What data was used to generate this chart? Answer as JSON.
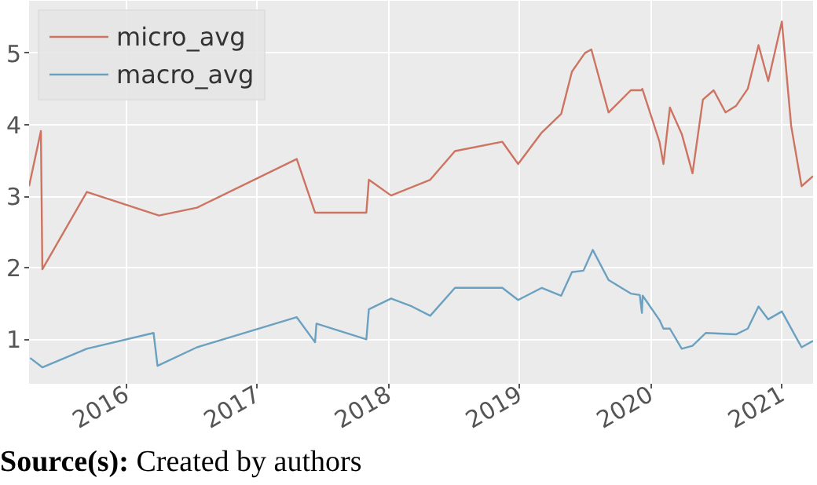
{
  "chart_data": {
    "type": "line",
    "xlim": [
      "2015-04-05",
      "2021-03-29"
    ],
    "xticks": [
      {
        "value": "2016-01-01",
        "label": "2016"
      },
      {
        "value": "2017-01-01",
        "label": "2017"
      },
      {
        "value": "2018-01-01",
        "label": "2018"
      },
      {
        "value": "2019-01-01",
        "label": "2019"
      },
      {
        "value": "2020-01-01",
        "label": "2020"
      },
      {
        "value": "2021-01-01",
        "label": "2021"
      }
    ],
    "ylim": [
      0.38,
      5.73
    ],
    "yticks": [
      1,
      2,
      3,
      4,
      5
    ],
    "grid": true,
    "legend": "top left",
    "line_style": "solid",
    "marker": "none",
    "series": [
      {
        "name": "micro_avg",
        "color": "#cc7461",
        "x": [
          "2015-04-05",
          "2015-05-08",
          "2015-05-12",
          "2015-09-13",
          "2016-04-01",
          "2016-07-16",
          "2017-04-20",
          "2017-06-10",
          "2017-10-31",
          "2017-11-07",
          "2018-01-08",
          "2018-04-27",
          "2018-07-05",
          "2018-11-14",
          "2018-12-28",
          "2019-03-04",
          "2019-04-27",
          "2019-05-27",
          "2019-07-02",
          "2019-07-20",
          "2019-09-06",
          "2019-11-07",
          "2019-12-06",
          "2019-12-09",
          "2020-01-26",
          "2020-02-06",
          "2020-02-24",
          "2020-03-28",
          "2020-04-27",
          "2020-05-26",
          "2020-06-25",
          "2020-07-28",
          "2020-08-26",
          "2020-09-28",
          "2020-10-28",
          "2020-11-24",
          "2021-01-01",
          "2021-01-27",
          "2021-02-25",
          "2021-03-29"
        ],
        "values": [
          3.14,
          3.91,
          1.98,
          3.06,
          2.73,
          2.84,
          3.52,
          2.77,
          2.77,
          3.23,
          3.01,
          3.23,
          3.63,
          3.76,
          3.45,
          3.89,
          4.15,
          4.74,
          5.0,
          5.05,
          4.17,
          4.48,
          4.48,
          4.5,
          3.76,
          3.45,
          4.24,
          3.87,
          3.32,
          4.35,
          4.48,
          4.17,
          4.26,
          4.5,
          5.11,
          4.61,
          5.44,
          3.98,
          3.14,
          3.28
        ]
      },
      {
        "name": "macro_avg",
        "color": "#6aa1c0",
        "x": [
          "2015-04-08",
          "2015-05-12",
          "2015-09-13",
          "2016-03-17",
          "2016-03-28",
          "2016-07-16",
          "2017-04-20",
          "2017-06-10",
          "2017-06-14",
          "2017-10-31",
          "2017-11-07",
          "2018-01-08",
          "2018-03-07",
          "2018-04-27",
          "2018-07-05",
          "2018-11-14",
          "2018-12-28",
          "2019-03-04",
          "2019-04-27",
          "2019-05-27",
          "2019-06-28",
          "2019-07-24",
          "2019-09-06",
          "2019-11-07",
          "2019-12-02",
          "2019-12-08",
          "2019-12-10",
          "2020-01-26",
          "2020-02-06",
          "2020-02-24",
          "2020-03-28",
          "2020-04-27",
          "2020-06-03",
          "2020-08-26",
          "2020-09-28",
          "2020-10-28",
          "2020-11-24",
          "2021-01-01",
          "2021-02-25",
          "2021-03-29"
        ],
        "values": [
          0.74,
          0.61,
          0.87,
          1.09,
          0.63,
          0.89,
          1.31,
          0.96,
          1.22,
          1.0,
          1.42,
          1.57,
          1.46,
          1.33,
          1.72,
          1.72,
          1.55,
          1.72,
          1.61,
          1.94,
          1.96,
          2.25,
          1.83,
          1.64,
          1.62,
          1.37,
          1.61,
          1.27,
          1.15,
          1.15,
          0.87,
          0.91,
          1.09,
          1.07,
          1.15,
          1.46,
          1.28,
          1.39,
          0.89,
          0.98
        ]
      }
    ],
    "annotations": [
      "Source(s): Created by authors"
    ]
  }
}
